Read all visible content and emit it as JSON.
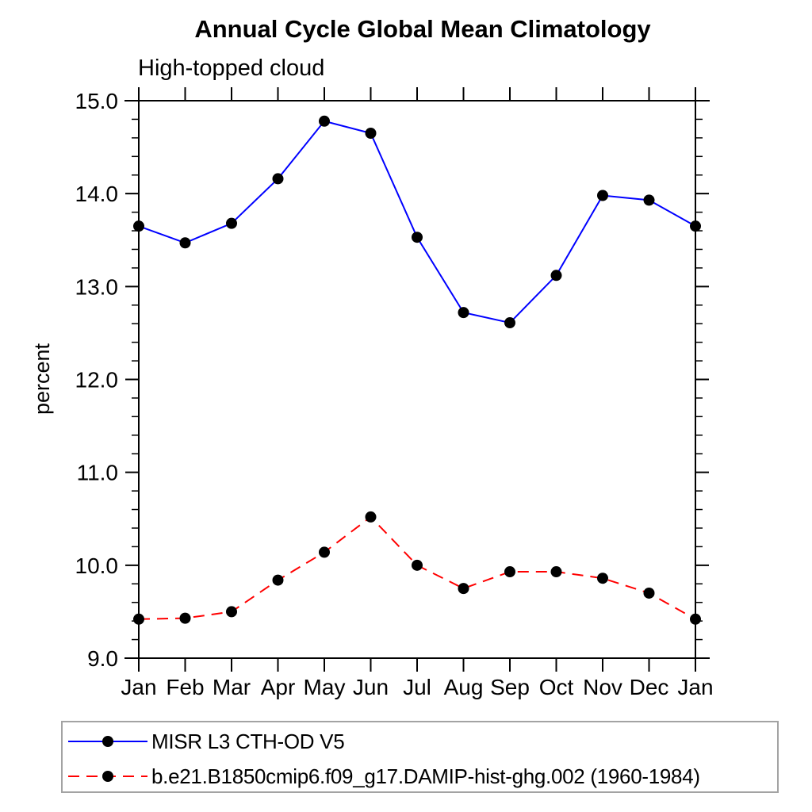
{
  "page": {
    "background": "#ffffff"
  },
  "chart_data": {
    "type": "line",
    "title": "Annual Cycle Global Mean Climatology",
    "subtitle": "High-topped cloud",
    "ylabel": "percent",
    "xlabel": "",
    "categories": [
      "Jan",
      "Feb",
      "Mar",
      "Apr",
      "May",
      "Jun",
      "Jul",
      "Aug",
      "Sep",
      "Oct",
      "Nov",
      "Dec",
      "Jan"
    ],
    "ylim": [
      9.0,
      15.0
    ],
    "ytick_interval": 1.0,
    "yminor_interval": 0.2,
    "ytick_labels": [
      "9.0",
      "10.0",
      "11.0",
      "12.0",
      "13.0",
      "14.0",
      "15.0"
    ],
    "grid": false,
    "legend_position": "bottom-left-box",
    "axis_color": "#000000",
    "series": [
      {
        "name": "MISR L3 CTH-OD V5",
        "color": "#0000ff",
        "line_style": "solid",
        "marker": "circle",
        "marker_color": "#000000",
        "values": [
          13.65,
          13.47,
          13.68,
          14.16,
          14.78,
          14.65,
          13.53,
          12.72,
          12.61,
          13.12,
          13.98,
          13.93,
          13.65
        ]
      },
      {
        "name": "b.e21.B1850cmip6.f09_g17.DAMIP-hist-ghg.002 (1960-1984)",
        "color": "#ff0000",
        "line_style": "dashed",
        "marker": "circle",
        "marker_color": "#000000",
        "values": [
          9.42,
          9.43,
          9.5,
          9.84,
          10.14,
          10.52,
          10.0,
          9.75,
          9.93,
          9.93,
          9.86,
          9.7,
          9.42
        ]
      }
    ]
  }
}
